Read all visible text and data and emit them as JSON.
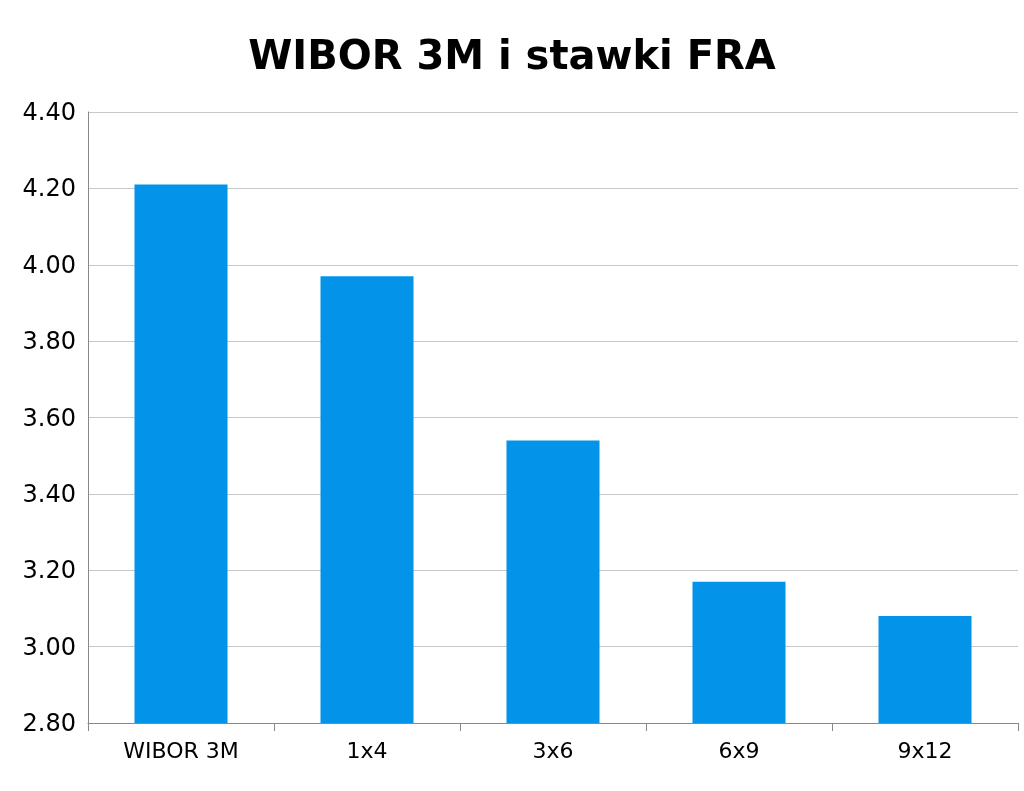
{
  "chart_data": {
    "type": "bar",
    "title": "WIBOR 3M i stawki FRA",
    "categories": [
      "WIBOR 3M",
      "1x4",
      "3x6",
      "6x9",
      "9x12"
    ],
    "values": [
      4.21,
      3.97,
      3.54,
      3.17,
      3.08
    ],
    "color": "#0394ea",
    "ylim": [
      2.8,
      4.4
    ],
    "yticks": [
      {
        "value": 2.8,
        "label": "2.80"
      },
      {
        "value": 3.0,
        "label": "3.00"
      },
      {
        "value": 3.2,
        "label": "3.20"
      },
      {
        "value": 3.4,
        "label": "3.40"
      },
      {
        "value": 3.6,
        "label": "3.60"
      },
      {
        "value": 3.8,
        "label": "3.80"
      },
      {
        "value": 4.0,
        "label": "4.00"
      },
      {
        "value": 4.2,
        "label": "4.20"
      },
      {
        "value": 4.4,
        "label": "4.40"
      }
    ],
    "grid": "y"
  }
}
